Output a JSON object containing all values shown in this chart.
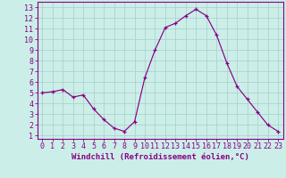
{
  "x": [
    0,
    1,
    2,
    3,
    4,
    5,
    6,
    7,
    8,
    9,
    10,
    11,
    12,
    13,
    14,
    15,
    16,
    17,
    18,
    19,
    20,
    21,
    22,
    23
  ],
  "y": [
    5.0,
    5.1,
    5.3,
    4.6,
    4.8,
    3.5,
    2.5,
    1.7,
    1.4,
    2.3,
    6.4,
    9.0,
    11.1,
    11.5,
    12.2,
    12.8,
    12.2,
    10.4,
    7.8,
    5.6,
    4.4,
    3.2,
    2.0,
    1.4
  ],
  "line_color": "#880088",
  "marker": "+",
  "marker_size": 3.5,
  "marker_lw": 0.9,
  "bg_color": "#cceee8",
  "grid_color": "#aad4cc",
  "xlabel": "Windchill (Refroidissement éolien,°C)",
  "xlabel_color": "#880088",
  "ylabel_ticks": [
    1,
    2,
    3,
    4,
    5,
    6,
    7,
    8,
    9,
    10,
    11,
    12,
    13
  ],
  "xtick_labels": [
    "0",
    "1",
    "2",
    "3",
    "4",
    "5",
    "6",
    "7",
    "8",
    "9",
    "10",
    "11",
    "12",
    "13",
    "14",
    "15",
    "16",
    "17",
    "18",
    "19",
    "20",
    "21",
    "22",
    "23"
  ],
  "ylim": [
    0.7,
    13.5
  ],
  "xlim": [
    -0.5,
    23.5
  ],
  "spine_color": "#880088",
  "tick_color": "#880088",
  "label_fontsize": 6.5,
  "tick_fontsize": 6.0,
  "linewidth": 0.85
}
